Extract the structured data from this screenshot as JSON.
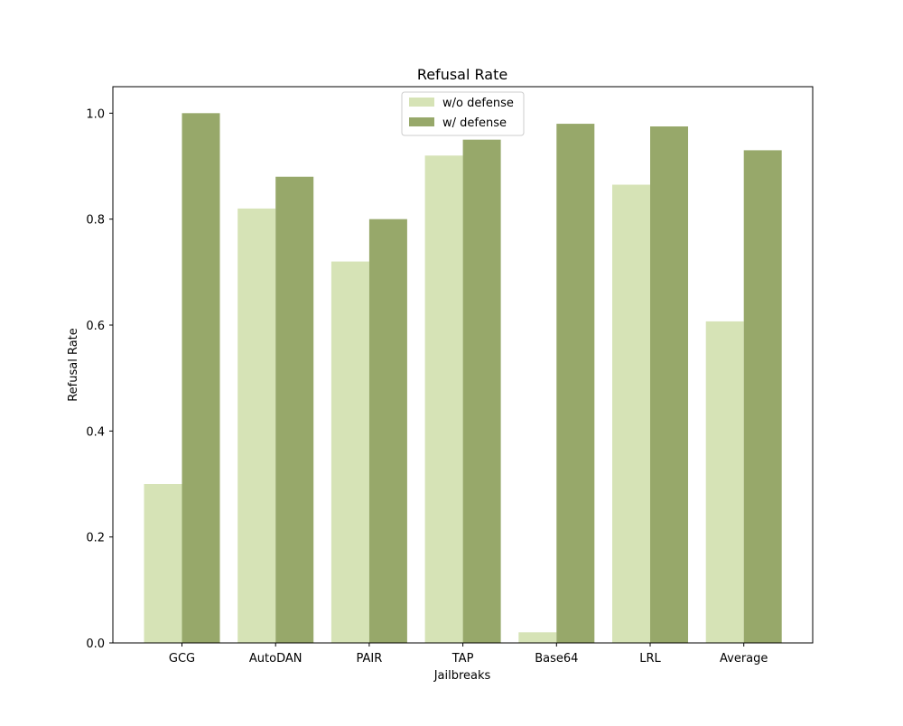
{
  "chart_data": {
    "type": "bar",
    "title": "Refusal Rate",
    "xlabel": "Jailbreaks",
    "ylabel": "Refusal Rate",
    "categories": [
      "GCG",
      "AutoDAN",
      "PAIR",
      "TAP",
      "Base64",
      "LRL",
      "Average"
    ],
    "series": [
      {
        "name": "w/o defense",
        "color": "#d6e3b6",
        "values": [
          0.3,
          0.82,
          0.72,
          0.92,
          0.02,
          0.865,
          0.607
        ]
      },
      {
        "name": "w/ defense",
        "color": "#97a86a",
        "values": [
          1.0,
          0.88,
          0.8,
          0.95,
          0.98,
          0.975,
          0.93
        ]
      }
    ],
    "ylim": [
      0,
      1.05
    ],
    "yticks": [
      "0.0",
      "0.2",
      "0.4",
      "0.6",
      "0.8",
      "1.0"
    ],
    "grid": false,
    "legend_position": "top-center"
  }
}
